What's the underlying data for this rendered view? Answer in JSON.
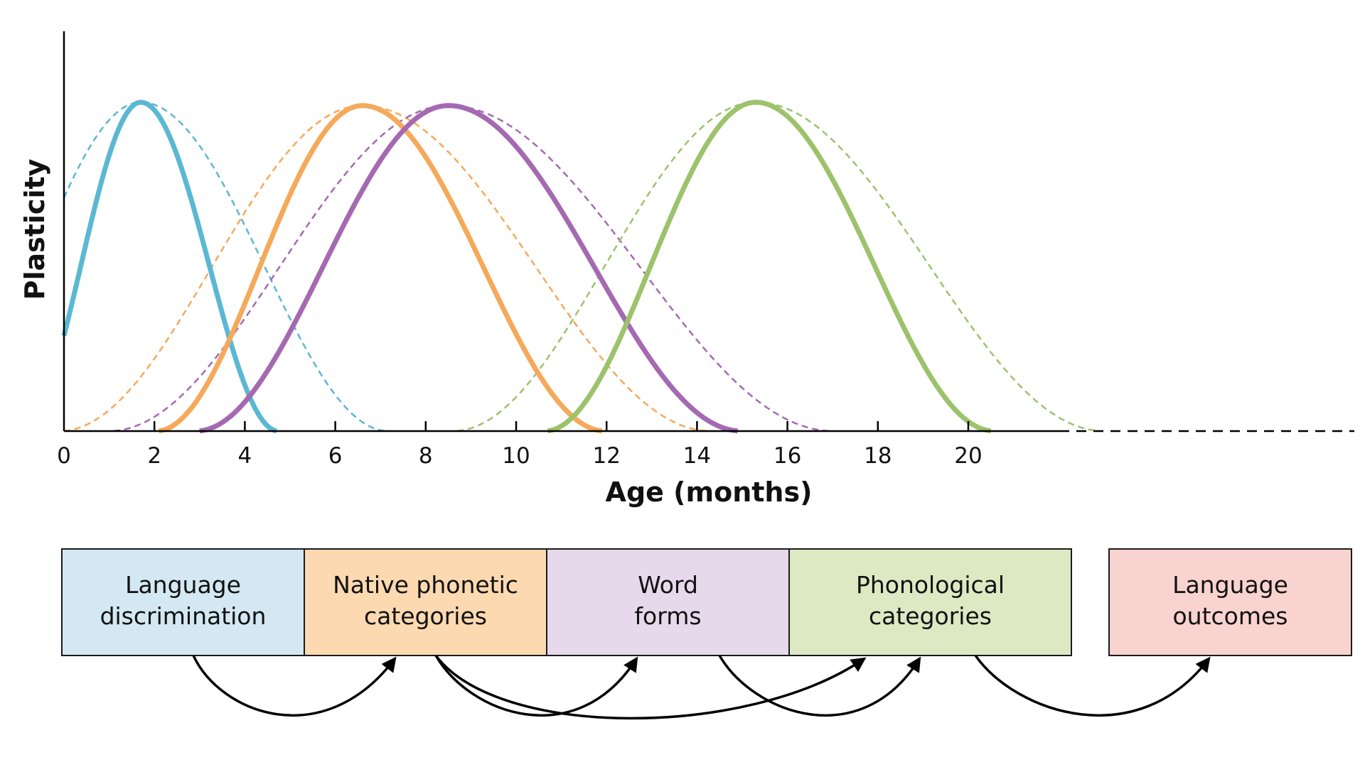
{
  "chart_data": {
    "type": "line",
    "xlabel": "Age (months)",
    "ylabel": "Plasticity",
    "x_ticks": [
      0,
      2,
      4,
      6,
      8,
      10,
      12,
      14,
      16,
      18,
      20
    ],
    "xlim": [
      0,
      22
    ],
    "x_extension_dashed_to": 29,
    "grid": false,
    "legend": "none",
    "series": [
      {
        "color": "#5bb8d2",
        "peak_x": 1.7,
        "peak_y": 1.0,
        "solid_x_range": [
          0,
          4.7
        ],
        "solid_y_at": [
          [
            0,
            0.29
          ],
          [
            4.7,
            0.0
          ]
        ],
        "dashed_x_range": [
          0,
          7.1
        ],
        "dashed_y_at": [
          [
            0,
            0.71
          ],
          [
            7.1,
            0.0
          ]
        ]
      },
      {
        "color": "#f5a95a",
        "peak_x": 6.6,
        "peak_y": 0.99,
        "solid_x_range": [
          2.1,
          11.9
        ],
        "solid_y_at": [
          [
            2.1,
            0.0
          ],
          [
            11.9,
            0.0
          ]
        ],
        "dashed_x_range": [
          0,
          14.2
        ],
        "dashed_y_at": [
          [
            0,
            0.0
          ],
          [
            14.2,
            0.0
          ]
        ]
      },
      {
        "color": "#a569b2",
        "peak_x": 8.5,
        "peak_y": 0.99,
        "solid_x_range": [
          3.0,
          14.9
        ],
        "solid_y_at": [
          [
            3.0,
            0.0
          ],
          [
            14.9,
            0.0
          ]
        ],
        "dashed_x_range": [
          1.1,
          16.9
        ],
        "dashed_y_at": [
          [
            1.1,
            0.0
          ],
          [
            16.9,
            0.0
          ]
        ]
      },
      {
        "color": "#9cc36b",
        "peak_x": 15.3,
        "peak_y": 1.0,
        "solid_x_range": [
          10.7,
          20.5
        ],
        "solid_y_at": [
          [
            10.7,
            0.0
          ],
          [
            20.5,
            0.0
          ]
        ],
        "dashed_x_range": [
          8.7,
          22.9
        ],
        "dashed_y_at": [
          [
            8.7,
            0.0
          ],
          [
            22.9,
            0.0
          ]
        ]
      }
    ]
  },
  "stages": [
    {
      "lines": [
        "Language",
        "discrimination"
      ],
      "fill": "#d3e8f2"
    },
    {
      "lines": [
        "Native phonetic",
        "categories"
      ],
      "fill": "#fcd9b0"
    },
    {
      "lines": [
        "Word",
        "forms"
      ],
      "fill": "#e6d9ec"
    },
    {
      "lines": [
        "Phonological",
        "categories"
      ],
      "fill": "#dce9c3"
    },
    {
      "lines": [
        "Language",
        "outcomes"
      ],
      "fill": "#f9d3cf"
    }
  ],
  "links": [
    {
      "from": "Language discrimination",
      "to": "Native phonetic categories"
    },
    {
      "from": "Native phonetic categories",
      "to": "Word forms"
    },
    {
      "from": "Native phonetic categories",
      "to": "Phonological categories"
    },
    {
      "from": "Word forms",
      "to": "Phonological categories"
    },
    {
      "from": "Phonological categories",
      "to": "Language outcomes"
    }
  ]
}
